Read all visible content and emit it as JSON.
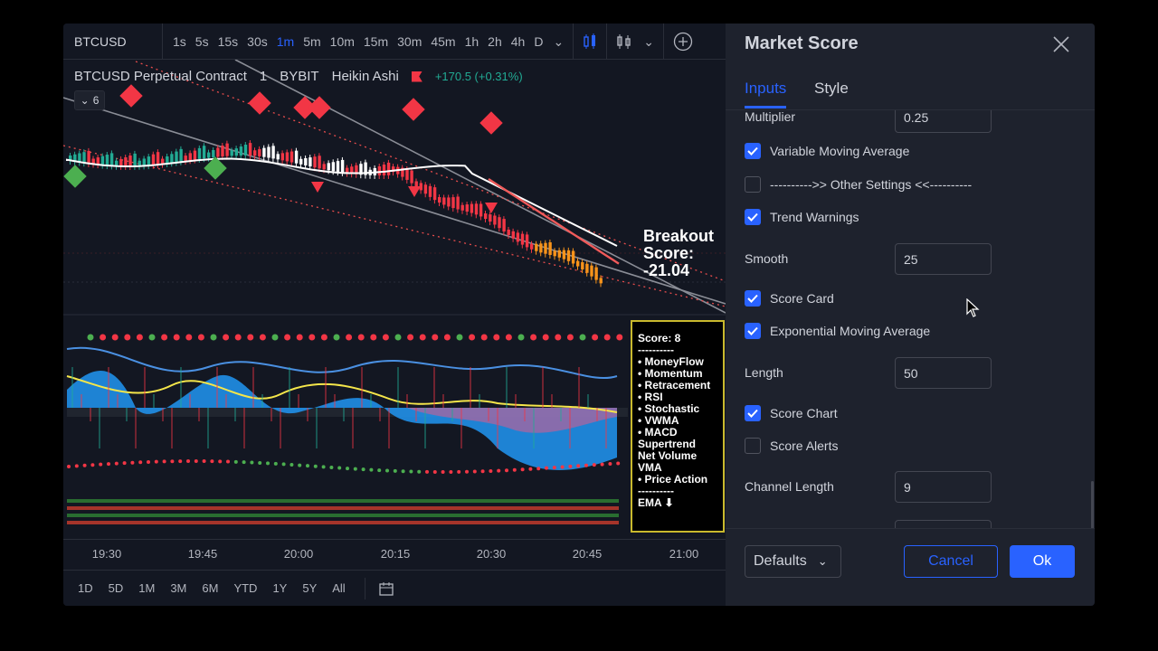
{
  "toolbar": {
    "symbol": "BTCUSD",
    "intervals": [
      "1s",
      "5s",
      "15s",
      "30s",
      "1m",
      "5m",
      "10m",
      "15m",
      "30m",
      "45m",
      "1h",
      "2h",
      "4h",
      "D"
    ],
    "active_interval": "1m"
  },
  "legend": {
    "title": "BTCUSD Perpetual Contract",
    "interval": "1",
    "exchange": "BYBIT",
    "chart_style": "Heikin Ashi",
    "change": "+170.5 (+0.31%)",
    "collapsed_count": "6"
  },
  "breakout": {
    "line1": "Breakout",
    "line2": "Score:",
    "value": "-21.04"
  },
  "score_card": {
    "title": "Score: 8",
    "sep": "----------",
    "items": [
      "• MoneyFlow",
      "• Momentum",
      "• Retracement",
      "• RSI",
      "• Stochastic",
      "• VWMA",
      "• MACD",
      "Supertrend",
      "Net Volume",
      "VMA",
      "• Price Action"
    ],
    "footer": "EMA ⬇"
  },
  "time_axis": [
    "19:30",
    "19:45",
    "20:00",
    "20:15",
    "20:30",
    "20:45",
    "21:00"
  ],
  "ranges": [
    "1D",
    "5D",
    "1M",
    "3M",
    "6M",
    "YTD",
    "1Y",
    "5Y",
    "All"
  ],
  "dialog": {
    "title": "Market Score",
    "tabs": [
      "Inputs",
      "Style"
    ],
    "multiplier_label": "Multiplier",
    "multiplier_value": "0.25",
    "vma_label": "Variable Moving Average",
    "other_settings_label": "---------->> Other Settings <<----------",
    "trend_warnings_label": "Trend Warnings",
    "smooth_label": "Smooth",
    "smooth_value": "25",
    "score_card_label": "Score Card",
    "ema_label": "Exponential Moving Average",
    "length_label": "Length",
    "length_value": "50",
    "score_chart_label": "Score Chart",
    "score_alerts_label": "Score Alerts",
    "channel_length_label": "Channel Length",
    "channel_length_value": "9",
    "defaults_label": "Defaults",
    "cancel_label": "Cancel",
    "ok_label": "Ok"
  },
  "colors": {
    "accent": "#2962ff",
    "up": "#22ab94",
    "down": "#f23645",
    "background": "#131722",
    "panel": "#1e222d"
  }
}
